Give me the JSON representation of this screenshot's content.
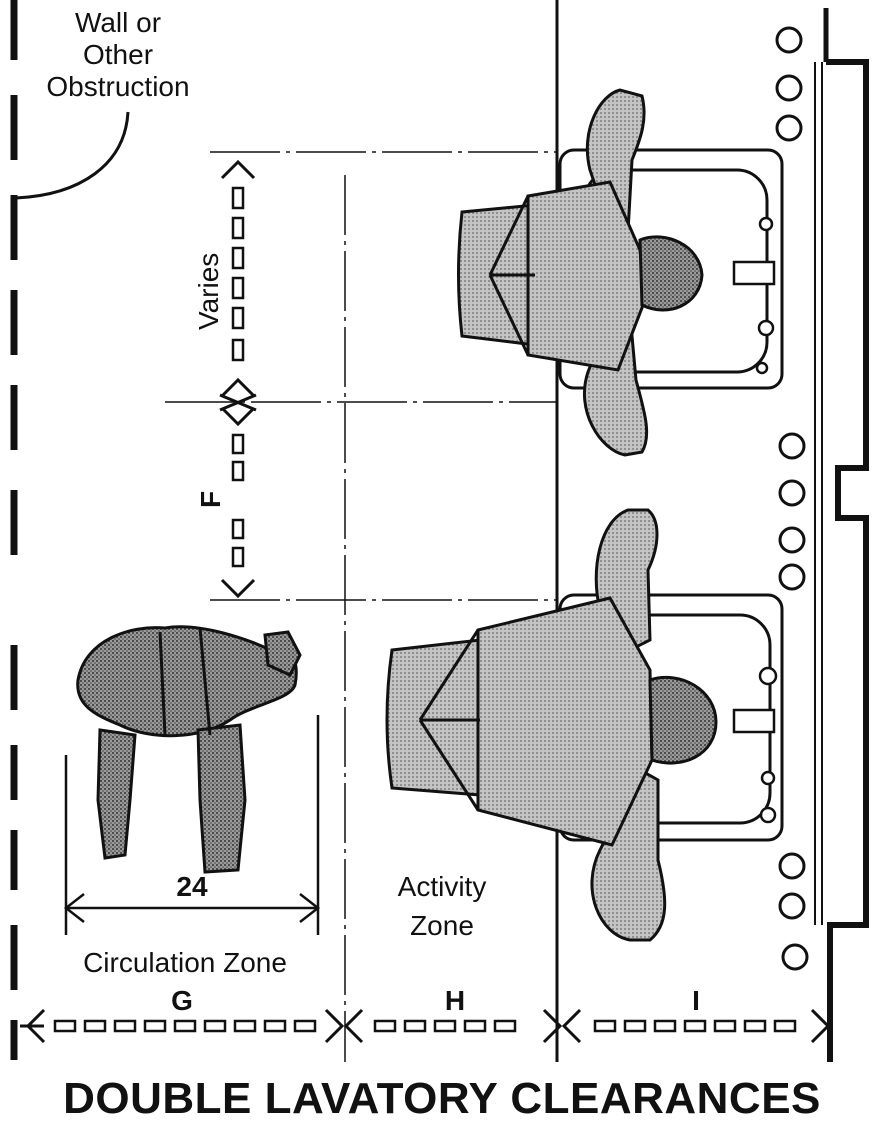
{
  "labels": {
    "wall_line1": "Wall or",
    "wall_line2": "Other",
    "wall_line3": "Obstruction",
    "varies": "Varies",
    "dim_f": "F",
    "dim_24": "24",
    "circulation_zone": "Circulation Zone",
    "activity_zone_line1": "Activity",
    "activity_zone_line2": "Zone",
    "dim_g": "G",
    "dim_h": "H",
    "dim_i": "I"
  },
  "title": "DOUBLE LAVATORY CLEARANCES",
  "colors": {
    "ink": "#111111",
    "figure_fill": "#b8b8b8",
    "figure_dark": "#8c8c8c",
    "background": "#ffffff"
  },
  "icons": [
    "person-plan-view",
    "lavatory-sink",
    "dimension-arrow"
  ]
}
